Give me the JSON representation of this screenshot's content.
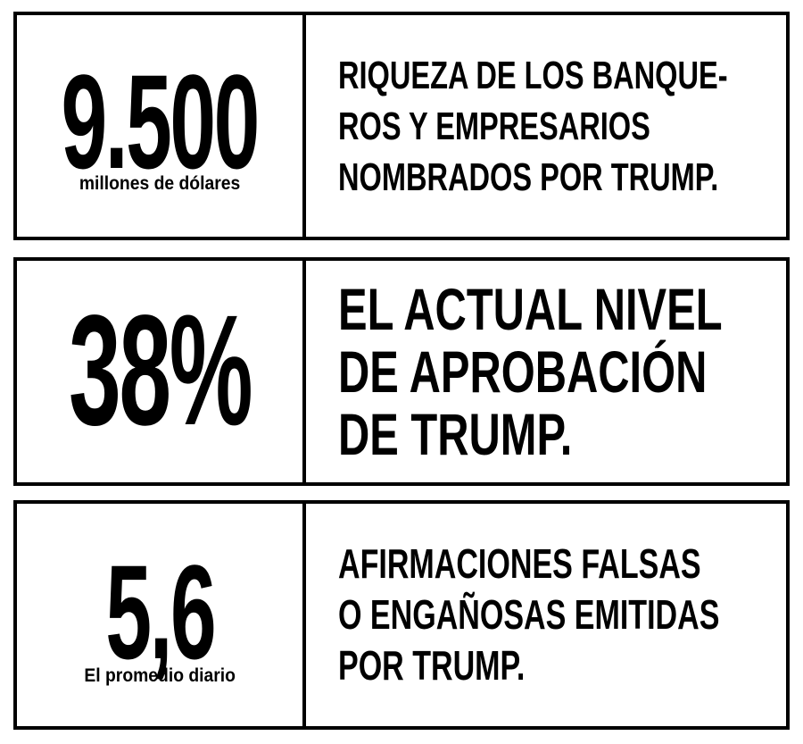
{
  "stats": [
    {
      "value": "9.500",
      "caption": "millones de dólares",
      "description": "RIQUEZA DE LOS BANQUE-\nROS Y EMPRESARIOS\nNOMBRADOS POR TRUMP."
    },
    {
      "value": "38%",
      "caption": "",
      "description": "EL ACTUAL NIVEL\nDE APROBACIÓN\nDE TRUMP."
    },
    {
      "value": "5,6",
      "caption": "El promedio diario",
      "description": "AFIRMACIONES FALSAS\nO ENGAÑOSAS EMITIDAS\nPOR TRUMP."
    }
  ],
  "colors": {
    "text": "#000000",
    "border": "#000000",
    "background": "#ffffff"
  }
}
